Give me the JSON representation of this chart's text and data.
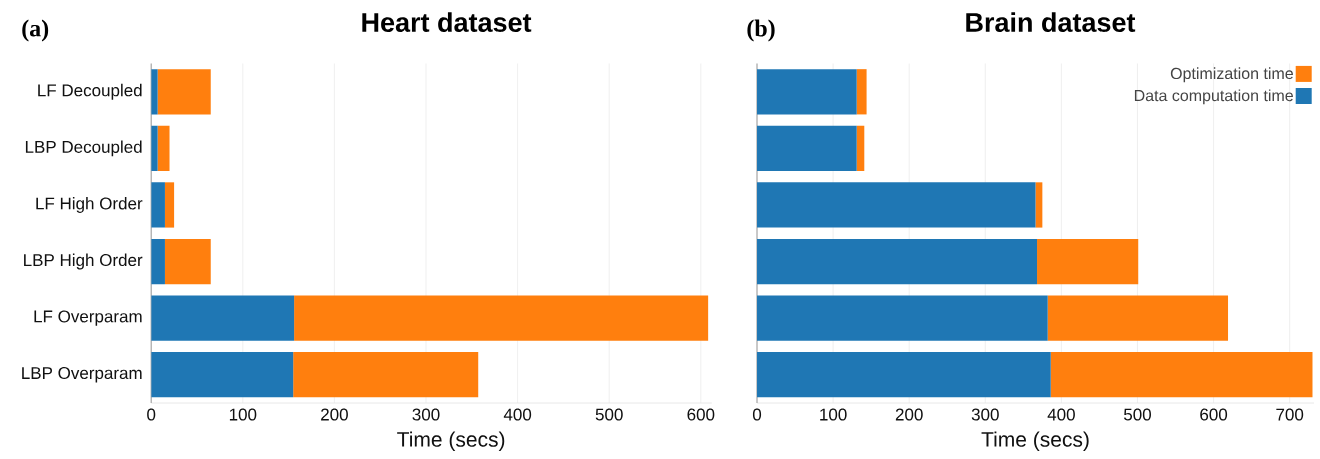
{
  "chart_data": [
    {
      "type": "bar",
      "orientation": "horizontal",
      "stacked": true,
      "title": "Heart dataset",
      "annotations": [
        "(a)"
      ],
      "xlabel": "Time (secs)",
      "categories": [
        "LF Decoupled",
        "LBP Decoupled",
        "LF High Order",
        "LBP High Order",
        "LF Overparam",
        "LBP Overparam"
      ],
      "series": [
        {
          "color": "#1f77b4",
          "values": [
            7,
            7,
            15,
            15,
            156,
            155
          ]
        },
        {
          "color": "#ff7f0e",
          "values": [
            58,
            13,
            10,
            50,
            452,
            202
          ]
        }
      ],
      "xlim": [
        0,
        612
      ],
      "xticks": [
        0,
        100,
        200,
        300,
        400,
        500,
        600
      ],
      "grid": "x",
      "legend": false
    },
    {
      "type": "bar",
      "orientation": "horizontal",
      "stacked": true,
      "title": "Brain dataset",
      "annotations": [
        "(b)"
      ],
      "xlabel": "Time (secs)",
      "categories": [
        null,
        null,
        null,
        null,
        null,
        null
      ],
      "series": [
        {
          "name": "Data computation time",
          "color": "#1f77b4",
          "values": [
            131,
            131,
            366,
            368,
            382,
            386
          ]
        },
        {
          "name": "Optimization time",
          "color": "#ff7f0e",
          "values": [
            13,
            10,
            9,
            133,
            237,
            344
          ]
        }
      ],
      "xlim": [
        0,
        732
      ],
      "xticks": [
        0,
        100,
        200,
        300,
        400,
        500,
        600,
        700
      ],
      "grid": "x",
      "legend": "top right"
    }
  ]
}
